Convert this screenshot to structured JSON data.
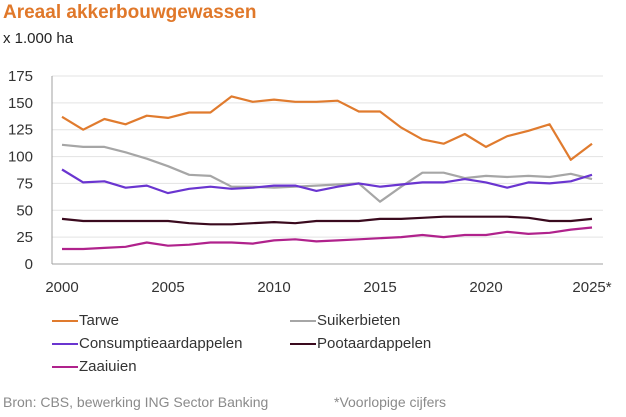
{
  "header": {
    "title": "Areaal akkerbouwgewassen",
    "unit": "x 1.000 ha"
  },
  "footer": {
    "source": "Bron: CBS, bewerking ING Sector Banking",
    "footnote": "*Voorlopige cijfers"
  },
  "chart_data": {
    "type": "line",
    "title": "Areaal akkerbouwgewassen",
    "ylabel": "x 1.000 ha",
    "xlabel": "",
    "x": [
      2000,
      2001,
      2002,
      2003,
      2004,
      2005,
      2006,
      2007,
      2008,
      2009,
      2010,
      2011,
      2012,
      2013,
      2014,
      2015,
      2016,
      2017,
      2018,
      2019,
      2020,
      2021,
      2022,
      2023,
      2024,
      2025
    ],
    "xticks": [
      2000,
      2005,
      2010,
      2015,
      2020,
      2025
    ],
    "xtick_labels": [
      "2000",
      "2005",
      "2010",
      "2015",
      "2020",
      "2025*"
    ],
    "xlim": [
      2000,
      2025
    ],
    "ylim": [
      0,
      175
    ],
    "yticks": [
      0,
      25,
      50,
      75,
      100,
      125,
      150,
      175
    ],
    "ytick_labels": [
      "0",
      "25",
      "50",
      "75",
      "100",
      "125",
      "150",
      "175"
    ],
    "grid": true,
    "legend_position": "bottom",
    "series": [
      {
        "name": "Tarwe",
        "color": "#E07B2E",
        "values": [
          137,
          125,
          135,
          130,
          138,
          136,
          141,
          141,
          156,
          151,
          153,
          151,
          151,
          152,
          142,
          142,
          127,
          116,
          112,
          121,
          109,
          119,
          124,
          130,
          97,
          112
        ]
      },
      {
        "name": "Suikerbieten",
        "color": "#A6A6A6",
        "values": [
          111,
          109,
          109,
          104,
          98,
          91,
          83,
          82,
          72,
          72,
          71,
          72,
          73,
          74,
          75,
          58,
          72,
          85,
          85,
          80,
          82,
          81,
          82,
          81,
          84,
          79
        ]
      },
      {
        "name": "Consumptieaardappelen",
        "color": "#6A35D0",
        "values": [
          88,
          76,
          77,
          71,
          73,
          66,
          70,
          72,
          70,
          71,
          73,
          73,
          68,
          72,
          75,
          72,
          74,
          76,
          76,
          79,
          76,
          71,
          76,
          75,
          77,
          83
        ]
      },
      {
        "name": "Pootaardappelen",
        "color": "#3A0A1E",
        "values": [
          42,
          40,
          40,
          40,
          40,
          40,
          38,
          37,
          37,
          38,
          39,
          38,
          40,
          40,
          40,
          42,
          42,
          43,
          44,
          44,
          44,
          44,
          43,
          40,
          40,
          42
        ]
      },
      {
        "name": "Zaaiuien",
        "color": "#B0228C",
        "values": [
          14,
          14,
          15,
          16,
          20,
          17,
          18,
          20,
          20,
          19,
          22,
          23,
          21,
          22,
          23,
          24,
          25,
          27,
          25,
          27,
          27,
          30,
          28,
          29,
          32,
          34
        ]
      }
    ]
  }
}
